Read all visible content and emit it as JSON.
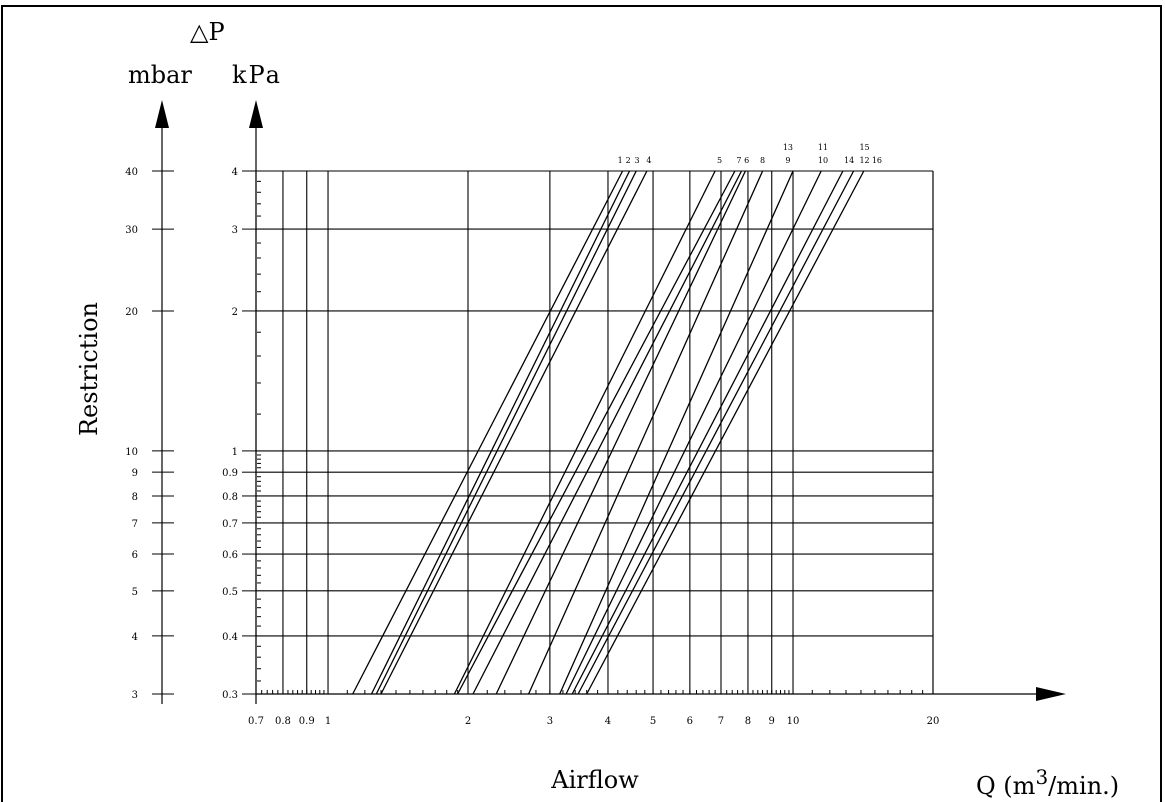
{
  "chart_data": {
    "type": "line",
    "title": "",
    "delta_label": "△P",
    "y_unit_left": "mbar",
    "y_unit_right": "kPa",
    "ylabel": "Restriction",
    "xlabel": "Airflow",
    "x_unit_prefix": "Q (m",
    "x_unit_sup": "3",
    "x_unit_suffix": "/min.)",
    "x_scale": "log",
    "y_scale": "log",
    "xlim": [
      0.7,
      20
    ],
    "ylim": [
      0.3,
      4
    ],
    "x_ticks": [
      0.7,
      0.8,
      0.9,
      1,
      2,
      3,
      4,
      5,
      6,
      7,
      8,
      9,
      10,
      20
    ],
    "x_tick_labels": [
      "0.7",
      "0.8",
      "0.9",
      "1",
      "2",
      "3",
      "4",
      "5",
      "6",
      "7",
      "8",
      "9",
      "10",
      "20"
    ],
    "y_ticks_kpa": [
      0.3,
      0.4,
      0.5,
      0.6,
      0.7,
      0.8,
      0.9,
      1,
      2,
      3,
      4
    ],
    "y_tick_labels_kpa": [
      "0.3",
      "0.4",
      "0.5",
      "0.6",
      "0.7",
      "0.8",
      "0.9",
      "1",
      "2",
      "3",
      "4"
    ],
    "y_tick_labels_mbar": [
      "3",
      "4",
      "5",
      "6",
      "7",
      "8",
      "9",
      "10",
      "20",
      "30",
      "40"
    ],
    "grid": true,
    "series": [
      {
        "name": "1",
        "points": [
          [
            1.13,
            0.3
          ],
          [
            4.3,
            4
          ]
        ]
      },
      {
        "name": "2",
        "points": [
          [
            1.24,
            0.3
          ],
          [
            4.45,
            4
          ]
        ]
      },
      {
        "name": "2",
        "points": [
          [
            1.27,
            0.3
          ],
          [
            4.6,
            4
          ]
        ]
      },
      {
        "name": "3",
        "points": [
          [
            1.3,
            0.3
          ],
          [
            4.85,
            4
          ]
        ]
      },
      {
        "name": "4",
        "points": [
          [
            1.87,
            0.3
          ],
          [
            6.8,
            4
          ]
        ]
      },
      {
        "name": "5",
        "points": [
          [
            1.9,
            0.3
          ],
          [
            7.5,
            4
          ]
        ]
      },
      {
        "name": "6",
        "points": [
          [
            2.05,
            0.3
          ],
          [
            7.75,
            4
          ]
        ]
      },
      {
        "name": "7",
        "points": [
          [
            2.3,
            0.3
          ],
          [
            7.9,
            4
          ]
        ]
      },
      {
        "name": "8",
        "points": [
          [
            2.7,
            0.3
          ],
          [
            8.6,
            4
          ]
        ]
      },
      {
        "name": "9",
        "points": [
          [
            3.15,
            0.3
          ],
          [
            10.0,
            4
          ]
        ]
      },
      {
        "name": "10",
        "points": [
          [
            3.25,
            0.3
          ],
          [
            11.5,
            4
          ]
        ]
      },
      {
        "name": "12",
        "points": [
          [
            3.35,
            0.3
          ],
          [
            12.8,
            4
          ]
        ]
      },
      {
        "name": "14",
        "points": [
          [
            3.45,
            0.3
          ],
          [
            13.5,
            4
          ]
        ]
      },
      {
        "name": "16",
        "points": [
          [
            3.6,
            0.3
          ],
          [
            14.2,
            4
          ]
        ]
      }
    ],
    "curve_labels": [
      {
        "text": "1",
        "row": 2,
        "x": 4.25
      },
      {
        "text": "2",
        "row": 2,
        "x": 4.42
      },
      {
        "text": "3",
        "row": 2,
        "x": 4.62
      },
      {
        "text": "4",
        "row": 2,
        "x": 4.9
      },
      {
        "text": "5",
        "row": 2,
        "x": 6.95
      },
      {
        "text": "7",
        "row": 2,
        "x": 7.65
      },
      {
        "text": "6",
        "row": 2,
        "x": 7.95
      },
      {
        "text": "8",
        "row": 2,
        "x": 8.6
      },
      {
        "text": "9",
        "row": 2,
        "x": 9.75
      },
      {
        "text": "10",
        "row": 2,
        "x": 11.6
      },
      {
        "text": "14",
        "row": 2,
        "x": 13.2
      },
      {
        "text": "12",
        "row": 2,
        "x": 14.25
      },
      {
        "text": "16",
        "row": 2,
        "x": 15.15
      },
      {
        "text": "13",
        "row": 1,
        "x": 9.75
      },
      {
        "text": "11",
        "row": 1,
        "x": 11.6
      },
      {
        "text": "15",
        "row": 1,
        "x": 14.25
      }
    ]
  }
}
